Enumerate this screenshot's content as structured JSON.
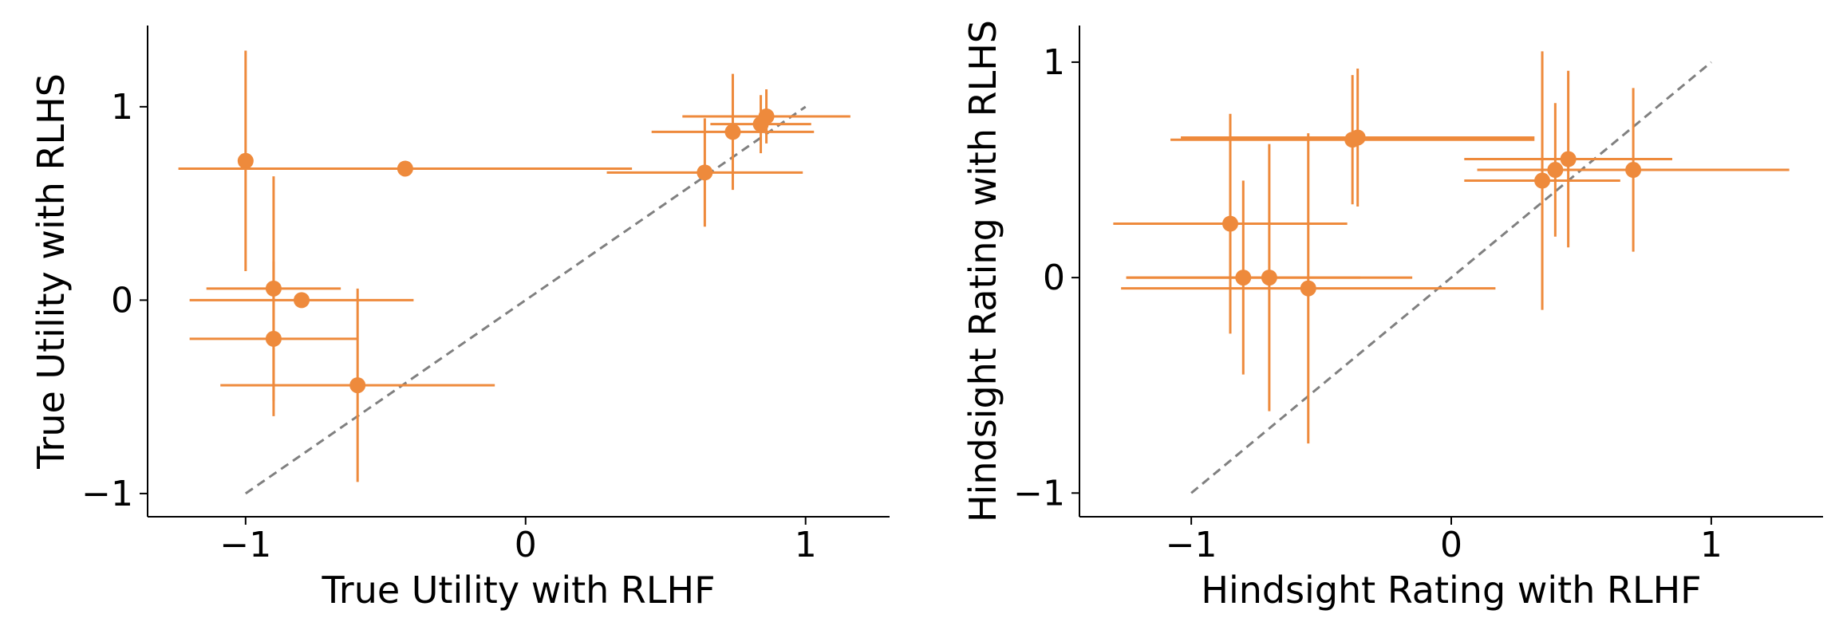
{
  "chart_data": [
    {
      "type": "scatter",
      "xlabel": "True Utility with RLHF",
      "ylabel": "True Utility with RLHS",
      "xlim": [
        -1.35,
        1.3
      ],
      "ylim": [
        -1.12,
        1.42
      ],
      "xticks": [
        -1,
        0,
        1
      ],
      "yticks": [
        -1,
        0,
        1
      ],
      "xtick_labels": [
        "−1",
        "0",
        "1"
      ],
      "ytick_labels": [
        "−1",
        "0",
        "1"
      ],
      "grid": false,
      "reference_line": {
        "from": [
          -1,
          -1
        ],
        "to": [
          1,
          1
        ],
        "style": "dashed",
        "color": "#808080"
      },
      "marker_color": "#EE8A3C",
      "points": [
        {
          "x": -1.0,
          "y": 0.72,
          "xerr": 0.0,
          "yerr": 0.57
        },
        {
          "x": -0.43,
          "y": 0.68,
          "xerr": 0.81,
          "yerr": 0.03
        },
        {
          "x": -0.9,
          "y": 0.06,
          "xerr": 0.24,
          "yerr": 0.58
        },
        {
          "x": -0.8,
          "y": 0.0,
          "xerr": 0.4,
          "yerr": 0.0
        },
        {
          "x": -0.9,
          "y": -0.2,
          "xerr": 0.3,
          "yerr": 0.4
        },
        {
          "x": -0.6,
          "y": -0.44,
          "xerr": 0.49,
          "yerr": 0.5
        },
        {
          "x": 0.64,
          "y": 0.66,
          "xerr": 0.35,
          "yerr": 0.28
        },
        {
          "x": 0.74,
          "y": 0.87,
          "xerr": 0.29,
          "yerr": 0.3
        },
        {
          "x": 0.84,
          "y": 0.91,
          "xerr": 0.18,
          "yerr": 0.15
        },
        {
          "x": 0.86,
          "y": 0.95,
          "xerr": 0.3,
          "yerr": 0.14
        }
      ]
    },
    {
      "type": "scatter",
      "xlabel": "Hindsight Rating with RLHF",
      "ylabel": "Hindsight Rating with RLHS",
      "xlim": [
        -1.43,
        1.43
      ],
      "ylim": [
        -1.11,
        1.17
      ],
      "xticks": [
        -1,
        0,
        1
      ],
      "yticks": [
        -1,
        0,
        1
      ],
      "xtick_labels": [
        "−1",
        "0",
        "1"
      ],
      "ytick_labels": [
        "−1",
        "0",
        "1"
      ],
      "grid": false,
      "reference_line": {
        "from": [
          -1,
          -1
        ],
        "to": [
          1,
          1
        ],
        "style": "dashed",
        "color": "#808080"
      },
      "marker_color": "#EE8A3C",
      "points": [
        {
          "x": -0.38,
          "y": 0.64,
          "xerr": 0.7,
          "yerr": 0.3
        },
        {
          "x": -0.36,
          "y": 0.65,
          "xerr": 0.68,
          "yerr": 0.32
        },
        {
          "x": -0.85,
          "y": 0.25,
          "xerr": 0.45,
          "yerr": 0.51
        },
        {
          "x": -0.8,
          "y": 0.0,
          "xerr": 0.45,
          "yerr": 0.45
        },
        {
          "x": -0.7,
          "y": 0.0,
          "xerr": 0.55,
          "yerr": 0.62
        },
        {
          "x": -0.55,
          "y": -0.05,
          "xerr": 0.72,
          "yerr": 0.72
        },
        {
          "x": 0.35,
          "y": 0.45,
          "xerr": 0.3,
          "yerr": 0.6
        },
        {
          "x": 0.4,
          "y": 0.5,
          "xerr": 0.3,
          "yerr": 0.31
        },
        {
          "x": 0.45,
          "y": 0.55,
          "xerr": 0.4,
          "yerr": 0.41
        },
        {
          "x": 0.7,
          "y": 0.5,
          "xerr": 0.6,
          "yerr": 0.38
        }
      ]
    }
  ]
}
